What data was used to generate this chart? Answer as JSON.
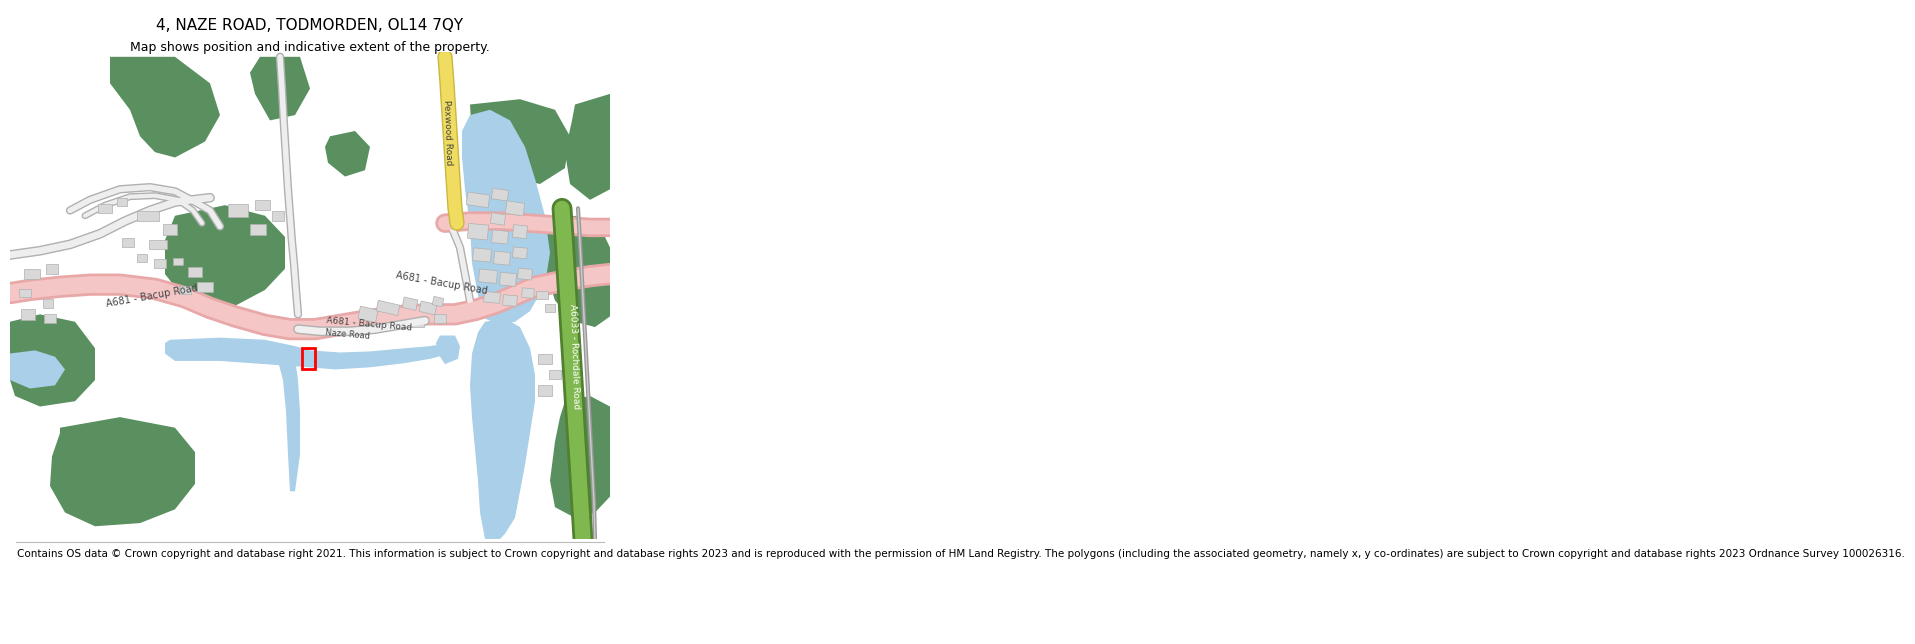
{
  "title": "4, NAZE ROAD, TODMORDEN, OL14 7QY",
  "subtitle": "Map shows position and indicative extent of the property.",
  "footer": "Contains OS data © Crown copyright and database right 2021. This information is subject to Crown copyright and database rights 2023 and is reproduced with the permission of HM Land Registry. The polygons (including the associated geometry, namely x, y co-ordinates) are subject to Crown copyright and database rights 2023 Ordnance Survey 100026316.",
  "bg_color": "#ffffff",
  "map_bg": "#f5f3f0",
  "road_color": "#f5c6c6",
  "road_border": "#e8a8a8",
  "water_color": "#aacfe8",
  "water_stream": "#b8d8f0",
  "green_color": "#5a9060",
  "building_color": "#d8d8d8",
  "building_stroke": "#b0b0b0",
  "property_color": "#ff0000",
  "road_text_color": "#444444",
  "yellow_road": "#f0dc60",
  "yellow_road_border": "#c8b840",
  "green_road": "#80b850",
  "green_road_border": "#508030",
  "grey_road": "#d0d0d0",
  "grey_road_border": "#b0b0b0",
  "railway_color": "#808080",
  "title_fontsize": 11,
  "subtitle_fontsize": 9,
  "footer_fontsize": 7.5
}
